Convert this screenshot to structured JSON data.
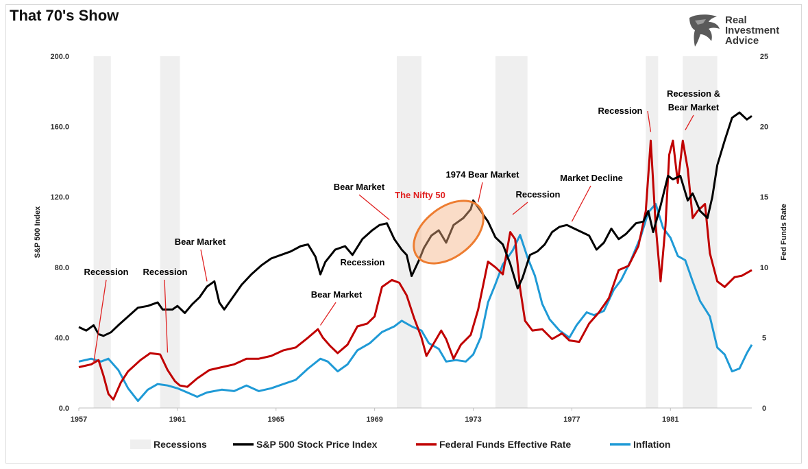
{
  "title": "That 70's Show",
  "logo": {
    "line1": "Real",
    "line2": "Investment",
    "line3": "Advice"
  },
  "chart_data": {
    "type": "line",
    "title": "That 70's Show",
    "ylabel_left": "S&P 500 Index",
    "ylabel_right": "Fed Funds Rate",
    "xlim": [
      1957,
      1984.3
    ],
    "ylim_left": [
      0,
      200
    ],
    "ylim_right": [
      0,
      25
    ],
    "x_ticks": [
      "1957",
      "1961",
      "1965",
      "1969",
      "1973",
      "1977",
      "1981"
    ],
    "y_left_ticks": [
      "0.0",
      "40.0",
      "80.0",
      "120.0",
      "160.0",
      "200.0"
    ],
    "y_right_ticks": [
      "0",
      "5",
      "10",
      "15",
      "20",
      "25"
    ],
    "legend_position": "bottom",
    "legend": [
      "Recessions",
      "S&P 500 Stock Price Index",
      "Federal Funds Effective Rate",
      "Inflation"
    ],
    "recessions": [
      [
        1957.6,
        1958.3
      ],
      [
        1960.3,
        1961.1
      ],
      [
        1969.9,
        1970.9
      ],
      [
        1973.9,
        1975.2
      ],
      [
        1980.0,
        1980.5
      ],
      [
        1981.5,
        1982.9
      ]
    ],
    "series": [
      {
        "name": "S&P 500 Stock Price Index",
        "axis": "left",
        "color": "#000000",
        "points": [
          [
            1957.0,
            46
          ],
          [
            1957.3,
            44
          ],
          [
            1957.6,
            47
          ],
          [
            1957.8,
            42
          ],
          [
            1958.0,
            41
          ],
          [
            1958.3,
            43
          ],
          [
            1958.6,
            47
          ],
          [
            1959.0,
            52
          ],
          [
            1959.4,
            57
          ],
          [
            1959.8,
            58
          ],
          [
            1960.2,
            60
          ],
          [
            1960.4,
            56
          ],
          [
            1960.8,
            56
          ],
          [
            1961.0,
            58
          ],
          [
            1961.3,
            54
          ],
          [
            1961.6,
            59
          ],
          [
            1961.9,
            63
          ],
          [
            1962.2,
            69
          ],
          [
            1962.5,
            72
          ],
          [
            1962.7,
            60
          ],
          [
            1962.9,
            56
          ],
          [
            1963.2,
            62
          ],
          [
            1963.6,
            70
          ],
          [
            1964.0,
            76
          ],
          [
            1964.4,
            81
          ],
          [
            1964.8,
            85
          ],
          [
            1965.2,
            87
          ],
          [
            1965.6,
            89
          ],
          [
            1966.0,
            92
          ],
          [
            1966.3,
            93
          ],
          [
            1966.6,
            86
          ],
          [
            1966.8,
            76
          ],
          [
            1967.0,
            83
          ],
          [
            1967.4,
            90
          ],
          [
            1967.8,
            92
          ],
          [
            1968.1,
            87
          ],
          [
            1968.5,
            96
          ],
          [
            1968.9,
            101
          ],
          [
            1969.2,
            104
          ],
          [
            1969.5,
            105
          ],
          [
            1969.8,
            96
          ],
          [
            1970.1,
            90
          ],
          [
            1970.3,
            87
          ],
          [
            1970.5,
            75
          ],
          [
            1970.8,
            84
          ],
          [
            1971.0,
            91
          ],
          [
            1971.3,
            98
          ],
          [
            1971.6,
            101
          ],
          [
            1971.9,
            94
          ],
          [
            1972.2,
            104
          ],
          [
            1972.6,
            108
          ],
          [
            1972.9,
            113
          ],
          [
            1973.0,
            118
          ],
          [
            1973.3,
            112
          ],
          [
            1973.6,
            106
          ],
          [
            1973.9,
            97
          ],
          [
            1974.2,
            93
          ],
          [
            1974.5,
            82
          ],
          [
            1974.8,
            68
          ],
          [
            1975.0,
            74
          ],
          [
            1975.3,
            87
          ],
          [
            1975.6,
            89
          ],
          [
            1975.9,
            93
          ],
          [
            1976.2,
            100
          ],
          [
            1976.5,
            103
          ],
          [
            1976.8,
            104
          ],
          [
            1977.1,
            102
          ],
          [
            1977.4,
            100
          ],
          [
            1977.7,
            98
          ],
          [
            1978.0,
            90
          ],
          [
            1978.3,
            94
          ],
          [
            1978.6,
            102
          ],
          [
            1978.9,
            96
          ],
          [
            1979.2,
            99
          ],
          [
            1979.6,
            105
          ],
          [
            1979.9,
            106
          ],
          [
            1980.1,
            112
          ],
          [
            1980.3,
            100
          ],
          [
            1980.6,
            115
          ],
          [
            1980.9,
            132
          ],
          [
            1981.1,
            130
          ],
          [
            1981.4,
            132
          ],
          [
            1981.7,
            118
          ],
          [
            1981.9,
            122
          ],
          [
            1982.2,
            112
          ],
          [
            1982.5,
            108
          ],
          [
            1982.7,
            120
          ],
          [
            1982.9,
            138
          ],
          [
            1983.2,
            152
          ],
          [
            1983.5,
            165
          ],
          [
            1983.8,
            168
          ],
          [
            1984.1,
            164
          ],
          [
            1984.3,
            166
          ]
        ]
      },
      {
        "name": "Federal Funds Effective Rate",
        "axis": "right",
        "color": "#c00000",
        "points": [
          [
            1957.0,
            2.9
          ],
          [
            1957.5,
            3.1
          ],
          [
            1957.8,
            3.4
          ],
          [
            1958.0,
            2.3
          ],
          [
            1958.2,
            1.0
          ],
          [
            1958.4,
            0.6
          ],
          [
            1958.7,
            1.8
          ],
          [
            1959.0,
            2.6
          ],
          [
            1959.5,
            3.4
          ],
          [
            1959.9,
            3.9
          ],
          [
            1960.3,
            3.8
          ],
          [
            1960.6,
            2.7
          ],
          [
            1960.9,
            1.9
          ],
          [
            1961.1,
            1.6
          ],
          [
            1961.4,
            1.5
          ],
          [
            1961.8,
            2.1
          ],
          [
            1962.3,
            2.7
          ],
          [
            1962.8,
            2.9
          ],
          [
            1963.3,
            3.1
          ],
          [
            1963.8,
            3.5
          ],
          [
            1964.3,
            3.5
          ],
          [
            1964.8,
            3.7
          ],
          [
            1965.3,
            4.1
          ],
          [
            1965.8,
            4.3
          ],
          [
            1966.3,
            5.0
          ],
          [
            1966.7,
            5.6
          ],
          [
            1966.9,
            5.0
          ],
          [
            1967.2,
            4.4
          ],
          [
            1967.5,
            3.9
          ],
          [
            1967.9,
            4.5
          ],
          [
            1968.3,
            5.8
          ],
          [
            1968.7,
            6.0
          ],
          [
            1969.0,
            6.5
          ],
          [
            1969.3,
            8.6
          ],
          [
            1969.7,
            9.1
          ],
          [
            1970.0,
            8.9
          ],
          [
            1970.3,
            8.0
          ],
          [
            1970.6,
            6.4
          ],
          [
            1970.9,
            5.0
          ],
          [
            1971.1,
            3.7
          ],
          [
            1971.4,
            4.6
          ],
          [
            1971.7,
            5.5
          ],
          [
            1971.9,
            4.9
          ],
          [
            1972.2,
            3.5
          ],
          [
            1972.5,
            4.5
          ],
          [
            1972.9,
            5.2
          ],
          [
            1973.2,
            7.0
          ],
          [
            1973.6,
            10.4
          ],
          [
            1973.9,
            10.0
          ],
          [
            1974.2,
            9.5
          ],
          [
            1974.5,
            12.5
          ],
          [
            1974.7,
            12.0
          ],
          [
            1974.9,
            8.5
          ],
          [
            1975.1,
            6.2
          ],
          [
            1975.4,
            5.5
          ],
          [
            1975.8,
            5.6
          ],
          [
            1976.2,
            4.9
          ],
          [
            1976.6,
            5.3
          ],
          [
            1976.9,
            4.8
          ],
          [
            1977.3,
            4.7
          ],
          [
            1977.7,
            6.0
          ],
          [
            1978.1,
            6.8
          ],
          [
            1978.5,
            7.8
          ],
          [
            1978.9,
            9.8
          ],
          [
            1979.3,
            10.1
          ],
          [
            1979.7,
            11.5
          ],
          [
            1980.0,
            14.0
          ],
          [
            1980.2,
            19.0
          ],
          [
            1980.4,
            13.0
          ],
          [
            1980.6,
            9.0
          ],
          [
            1980.8,
            13.0
          ],
          [
            1980.95,
            18.0
          ],
          [
            1981.1,
            19.0
          ],
          [
            1981.3,
            16.0
          ],
          [
            1981.5,
            19.0
          ],
          [
            1981.7,
            17.0
          ],
          [
            1981.9,
            13.5
          ],
          [
            1982.1,
            14.0
          ],
          [
            1982.4,
            14.5
          ],
          [
            1982.6,
            11.0
          ],
          [
            1982.9,
            9.0
          ],
          [
            1983.2,
            8.6
          ],
          [
            1983.6,
            9.3
          ],
          [
            1983.9,
            9.4
          ],
          [
            1984.3,
            9.8
          ]
        ]
      },
      {
        "name": "Inflation",
        "axis": "right",
        "color": "#1f9ad6",
        "points": [
          [
            1957.0,
            3.3
          ],
          [
            1957.5,
            3.5
          ],
          [
            1957.9,
            3.3
          ],
          [
            1958.2,
            3.5
          ],
          [
            1958.6,
            2.7
          ],
          [
            1959.0,
            1.4
          ],
          [
            1959.4,
            0.5
          ],
          [
            1959.8,
            1.3
          ],
          [
            1960.2,
            1.7
          ],
          [
            1960.6,
            1.6
          ],
          [
            1961.0,
            1.4
          ],
          [
            1961.4,
            1.1
          ],
          [
            1961.8,
            0.8
          ],
          [
            1962.2,
            1.1
          ],
          [
            1962.8,
            1.3
          ],
          [
            1963.3,
            1.2
          ],
          [
            1963.8,
            1.6
          ],
          [
            1964.3,
            1.2
          ],
          [
            1964.8,
            1.4
          ],
          [
            1965.3,
            1.7
          ],
          [
            1965.8,
            2.0
          ],
          [
            1966.3,
            2.8
          ],
          [
            1966.8,
            3.5
          ],
          [
            1967.1,
            3.3
          ],
          [
            1967.5,
            2.6
          ],
          [
            1967.9,
            3.1
          ],
          [
            1968.3,
            4.1
          ],
          [
            1968.8,
            4.6
          ],
          [
            1969.3,
            5.4
          ],
          [
            1969.8,
            5.8
          ],
          [
            1970.1,
            6.2
          ],
          [
            1970.5,
            5.8
          ],
          [
            1970.9,
            5.5
          ],
          [
            1971.2,
            4.6
          ],
          [
            1971.6,
            4.2
          ],
          [
            1971.9,
            3.3
          ],
          [
            1972.3,
            3.4
          ],
          [
            1972.7,
            3.3
          ],
          [
            1973.0,
            3.8
          ],
          [
            1973.3,
            5.0
          ],
          [
            1973.6,
            7.5
          ],
          [
            1973.9,
            8.8
          ],
          [
            1974.2,
            10.2
          ],
          [
            1974.6,
            11.2
          ],
          [
            1974.9,
            12.3
          ],
          [
            1975.2,
            10.7
          ],
          [
            1975.5,
            9.4
          ],
          [
            1975.8,
            7.4
          ],
          [
            1976.1,
            6.3
          ],
          [
            1976.5,
            5.5
          ],
          [
            1976.9,
            5.0
          ],
          [
            1977.2,
            5.9
          ],
          [
            1977.6,
            6.8
          ],
          [
            1977.9,
            6.6
          ],
          [
            1978.3,
            6.9
          ],
          [
            1978.7,
            8.4
          ],
          [
            1979.0,
            9.1
          ],
          [
            1979.4,
            10.5
          ],
          [
            1979.8,
            12.2
          ],
          [
            1980.1,
            13.9
          ],
          [
            1980.4,
            14.5
          ],
          [
            1980.7,
            12.8
          ],
          [
            1981.0,
            12.1
          ],
          [
            1981.3,
            10.8
          ],
          [
            1981.6,
            10.5
          ],
          [
            1981.9,
            9.0
          ],
          [
            1982.2,
            7.6
          ],
          [
            1982.6,
            6.5
          ],
          [
            1982.9,
            4.3
          ],
          [
            1983.2,
            3.8
          ],
          [
            1983.5,
            2.6
          ],
          [
            1983.8,
            2.8
          ],
          [
            1984.1,
            3.9
          ],
          [
            1984.3,
            4.5
          ]
        ]
      }
    ],
    "annotations": [
      {
        "text": "Recession",
        "x": 1957.6,
        "y": 25.5,
        "axis": "left",
        "color": "#000000"
      },
      {
        "text": "Recession",
        "x": 1960.6,
        "y": 31.5,
        "axis": "left",
        "color": "#000000"
      },
      {
        "text": "Bear Market",
        "x": 1962.2,
        "y": 72,
        "axis": "left",
        "color": "#000000"
      },
      {
        "text": "Bear Market",
        "x": 1966.8,
        "y": 47,
        "axis": "left",
        "color": "#000000"
      },
      {
        "text": "Bear Market",
        "x": 1969.6,
        "y": 107,
        "axis": "left",
        "color": "#000000"
      },
      {
        "text": "Recession",
        "x": 1970.6,
        "y": 86,
        "axis": "left",
        "color": "#000000"
      },
      {
        "text": "The Nifty 50",
        "x": 1972.0,
        "y": 100,
        "axis": "left",
        "color": "#e02020"
      },
      {
        "text": "1974 Bear Market",
        "x": 1973.2,
        "y": 117,
        "axis": "left",
        "color": "#000000"
      },
      {
        "text": "Recession",
        "x": 1974.6,
        "y": 110,
        "axis": "left",
        "color": "#000000"
      },
      {
        "text": "Market Decline",
        "x": 1977.0,
        "y": 106,
        "axis": "left",
        "color": "#000000"
      },
      {
        "text": "Recession",
        "x": 1980.2,
        "y": 157,
        "axis": "left",
        "color": "#000000"
      },
      {
        "text": "Recession &",
        "x": 1981.6,
        "y": 158,
        "axis": "left",
        "color": "#000000"
      },
      {
        "text": "Bear Market",
        "x": 1981.6,
        "y": 158,
        "axis": "left",
        "color": "#000000"
      }
    ]
  }
}
